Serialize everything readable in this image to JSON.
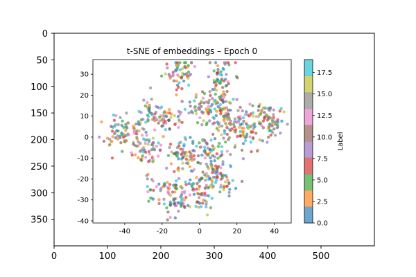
{
  "chart_data": {
    "type": "scatter",
    "outer_axes": {
      "x_ticks": [
        0,
        100,
        200,
        300,
        400,
        500
      ],
      "y_ticks": [
        0,
        50,
        100,
        150,
        200,
        250,
        300,
        350
      ],
      "xlim": [
        0,
        600
      ],
      "ylim": [
        400,
        0
      ]
    },
    "plot": {
      "title": "t-SNE of embeddings – Epoch 0",
      "x_ticks": [
        -40,
        -20,
        0,
        20,
        40
      ],
      "y_ticks": [
        -40,
        -30,
        -20,
        -10,
        0,
        10,
        20,
        30
      ],
      "xlim": [
        -57,
        49
      ],
      "ylim": [
        -41,
        37
      ],
      "clusters": [
        {
          "cx": -11,
          "cy": 31,
          "sx": 4.5,
          "sy": 3.5,
          "n": 55
        },
        {
          "cx": 11,
          "cy": 28,
          "sx": 3.5,
          "sy": 4.5,
          "n": 50
        },
        {
          "cx": 12,
          "cy": 17,
          "sx": 3.0,
          "sy": 4.0,
          "n": 40
        },
        {
          "cx": 3,
          "cy": 14,
          "sx": 6.0,
          "sy": 3.0,
          "n": 60
        },
        {
          "cx": 12,
          "cy": 6,
          "sx": 5.0,
          "sy": 4.0,
          "n": 55
        },
        {
          "cx": -19,
          "cy": 8,
          "sx": 5.5,
          "sy": 3.0,
          "n": 55
        },
        {
          "cx": -44,
          "cy": 2,
          "sx": 4.5,
          "sy": 4.0,
          "n": 55
        },
        {
          "cx": -33,
          "cy": 1,
          "sx": 3.0,
          "sy": 4.5,
          "n": 40
        },
        {
          "cx": -27,
          "cy": 14,
          "sx": 3.0,
          "sy": 3.0,
          "n": 25
        },
        {
          "cx": -10,
          "cy": -8,
          "sx": 5.5,
          "sy": 4.0,
          "n": 60
        },
        {
          "cx": -26,
          "cy": -6,
          "sx": 4.0,
          "sy": 4.0,
          "n": 40
        },
        {
          "cx": 5,
          "cy": -7,
          "sx": 5.5,
          "sy": 4.5,
          "n": 55
        },
        {
          "cx": 25,
          "cy": 1,
          "sx": 5.0,
          "sy": 4.0,
          "n": 50
        },
        {
          "cx": 33,
          "cy": 10,
          "sx": 5.0,
          "sy": 3.5,
          "n": 55
        },
        {
          "cx": 40,
          "cy": 6,
          "sx": 3.5,
          "sy": 3.5,
          "n": 35
        },
        {
          "cx": -18,
          "cy": -24,
          "sx": 6.0,
          "sy": 3.5,
          "n": 60
        },
        {
          "cx": 2,
          "cy": -22,
          "sx": 4.5,
          "sy": 3.5,
          "n": 45
        },
        {
          "cx": 14,
          "cy": -22,
          "sx": 3.5,
          "sy": 3.0,
          "n": 30
        },
        {
          "cx": -12,
          "cy": -32,
          "sx": 4.0,
          "sy": 3.0,
          "n": 40
        },
        {
          "cx": 1,
          "cy": -30,
          "sx": 3.0,
          "sy": 3.0,
          "n": 25
        },
        {
          "cx": 8,
          "cy": -15,
          "sx": 3.0,
          "sy": 3.0,
          "n": 25
        }
      ]
    },
    "colorbar": {
      "label": "Label",
      "ticks": [
        "0.0",
        "2.5",
        "5.0",
        "7.5",
        "10.0",
        "12.5",
        "15.0",
        "17.5"
      ],
      "tick_values": [
        0,
        2.5,
        5,
        7.5,
        10,
        12.5,
        15,
        17.5
      ],
      "range": [
        0,
        19
      ],
      "colors": [
        "#1f77b4",
        "#ff7f0e",
        "#2ca02c",
        "#d62728",
        "#9467bd",
        "#8c564b",
        "#e377c2",
        "#7f7f7f",
        "#bcbd22",
        "#17becf"
      ]
    }
  }
}
